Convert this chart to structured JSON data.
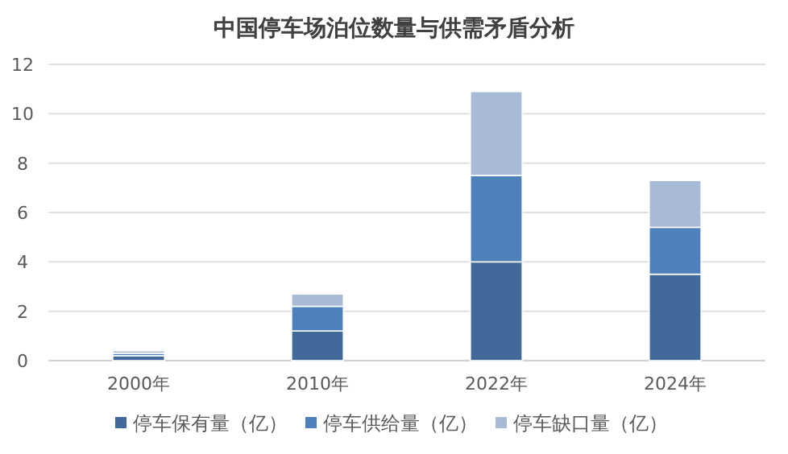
{
  "chart_data": {
    "type": "bar",
    "title": "中国停车场泊位数量与供需矛盾分析",
    "stacked": true,
    "categories": [
      "2000年",
      "2010年",
      "2022年",
      "2024年"
    ],
    "series": [
      {
        "name": "停车保有量（亿）",
        "color": "#41699a",
        "values": [
          0.2,
          1.2,
          4.0,
          3.5
        ]
      },
      {
        "name": "停车供给量（亿）",
        "color": "#4e80bb",
        "values": [
          0.1,
          1.0,
          3.5,
          1.9
        ]
      },
      {
        "name": "停车缺口量（亿）",
        "color": "#a9bad6",
        "values": [
          0.1,
          0.5,
          3.4,
          1.9
        ]
      }
    ],
    "ylim": [
      0,
      12
    ],
    "yticks": [
      0,
      2,
      4,
      6,
      8,
      10,
      12
    ],
    "grid": "y",
    "legend": "bottom"
  }
}
